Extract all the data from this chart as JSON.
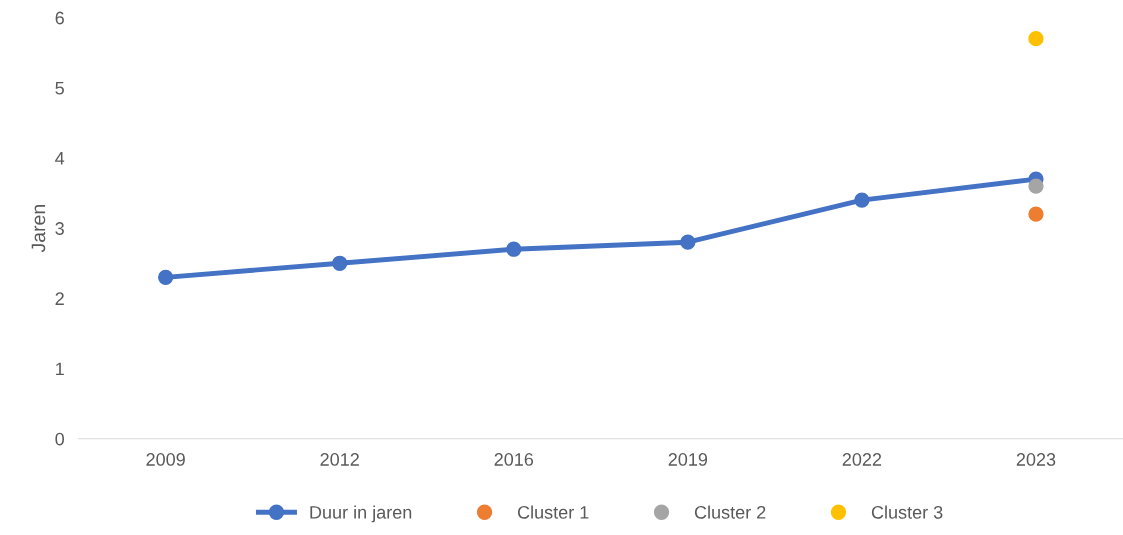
{
  "chart_data": {
    "type": "line",
    "ylabel": "Jaren",
    "categories": [
      "2009",
      "2012",
      "2016",
      "2019",
      "2022",
      "2023"
    ],
    "series": [
      {
        "name": "Duur in jaren",
        "color": "#4472c4",
        "values": [
          2.3,
          2.5,
          2.7,
          2.8,
          3.4,
          3.7
        ]
      },
      {
        "name": "Cluster 1",
        "type": "scatter",
        "color": "#ed7d31",
        "values": [
          null,
          null,
          null,
          null,
          null,
          3.2
        ]
      },
      {
        "name": "Cluster 2",
        "type": "scatter",
        "color": "#a5a5a5",
        "values": [
          null,
          null,
          null,
          null,
          null,
          3.6
        ]
      },
      {
        "name": "Cluster 3",
        "type": "scatter",
        "color": "#ffc000",
        "values": [
          null,
          null,
          null,
          null,
          null,
          5.7
        ]
      }
    ],
    "ylim": [
      0,
      6
    ],
    "yticks": [
      0,
      1,
      2,
      3,
      4,
      5,
      6
    ],
    "grid": false,
    "legend": "bottom",
    "marker": "circle",
    "line_style": "solid"
  }
}
